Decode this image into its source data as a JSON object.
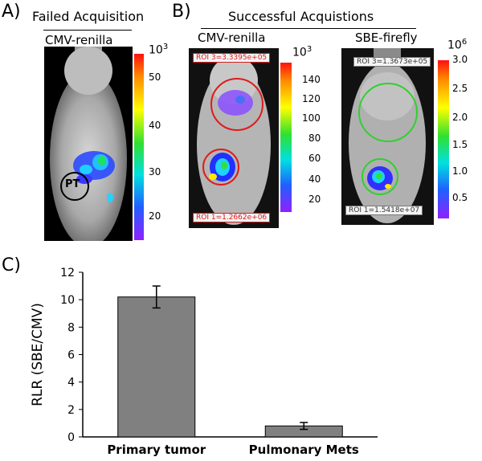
{
  "panelA": {
    "label": "A)",
    "title": "Failed Acquisition",
    "subtitle": "CMV-renilla",
    "marker": "PT",
    "scale": {
      "base": "10",
      "exponent": "3",
      "ticks": [
        "50",
        "40",
        "30",
        "20"
      ]
    }
  },
  "panelB": {
    "label": "B)",
    "title": "Successful Acquistions",
    "left": {
      "title": "CMV-renilla",
      "roi_top": "ROI 3=3.3395e+05",
      "roi_bottom": "ROI 1=1.2662e+06",
      "scale": {
        "base": "10",
        "exponent": "3",
        "ticks": [
          "140",
          "120",
          "100",
          "80",
          "60",
          "40",
          "20"
        ]
      }
    },
    "right": {
      "title": "SBE-firefly",
      "roi_top": "ROI 3=1.3673e+05",
      "roi_bottom": "ROI 1=1.5418e+07",
      "scale": {
        "base": "10",
        "exponent": "6",
        "ticks": [
          "3.0",
          "2.5",
          "2.0",
          "1.5",
          "1.0",
          "0.5"
        ]
      }
    }
  },
  "panelC": {
    "label": "C)",
    "chart_data": {
      "type": "bar",
      "categories": [
        "Primary tumor",
        "Pulmonary Mets"
      ],
      "values": [
        10.2,
        0.8
      ],
      "error": [
        0.8,
        0.25
      ],
      "ylabel": "RLR (SBE/CMV)",
      "ylim": [
        0,
        12
      ],
      "yticks": [
        0,
        2,
        4,
        6,
        8,
        10,
        12
      ],
      "bar_color": "#808080"
    }
  }
}
